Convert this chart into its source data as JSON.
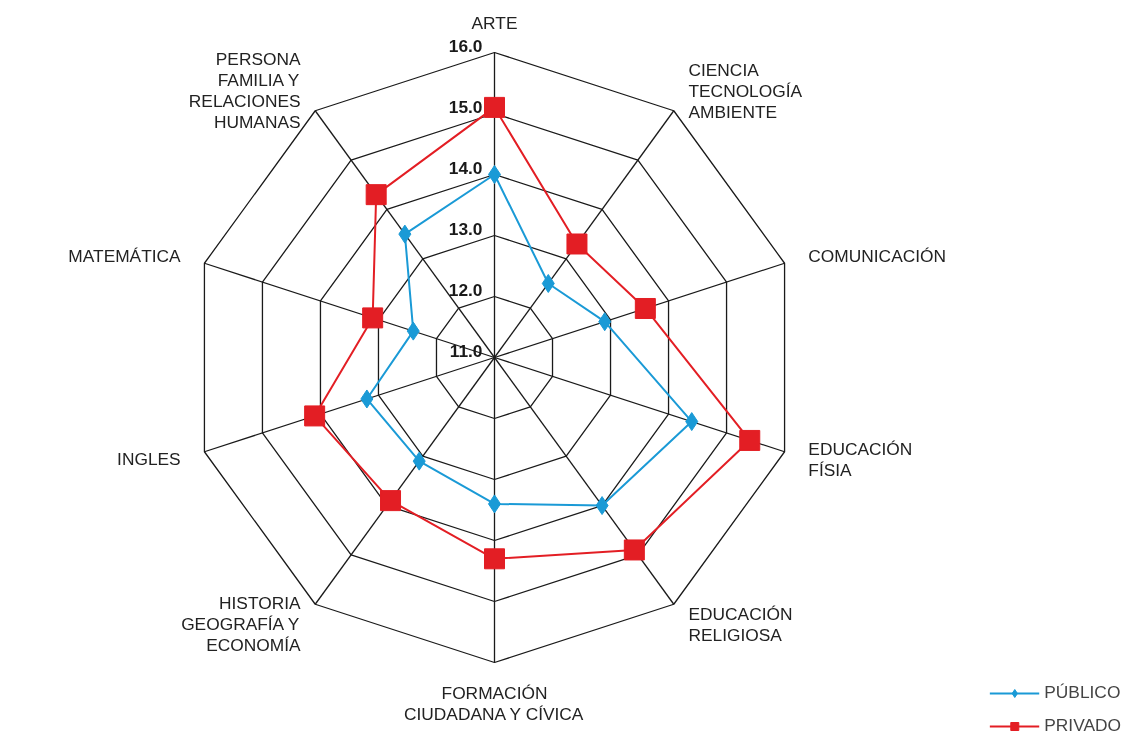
{
  "chart_data": {
    "type": "radar",
    "categories": [
      "ARTE",
      "CIENCIA\nTECNOLOGÍA\nAMBIENTE",
      "COMUNICACIÓN",
      "EDUCACIÓN\nFÍSIA",
      "EDUCACIÓN\nRELIGIOSA",
      "FORMACIÓN\nCIUDADANA Y CÍVICA",
      "HISTORIA\nGEOGRAFÍA Y\nECONOMÍA",
      "INGLES",
      "MATEMÁTICA",
      "PERSONA\nFAMILIA Y\nRELACIONES\nHUMANAS"
    ],
    "series": [
      {
        "name": "PÚBLICO",
        "color": "#1a9ad6",
        "marker": "diamond",
        "values": [
          14.0,
          12.5,
          12.9,
          14.4,
          14.0,
          13.4,
          13.1,
          13.2,
          12.4,
          13.5
        ]
      },
      {
        "name": "PRIVADO",
        "color": "#e31e24",
        "marker": "square",
        "values": [
          15.1,
          13.3,
          13.6,
          15.4,
          14.9,
          14.3,
          13.9,
          14.1,
          13.1,
          14.3
        ]
      }
    ],
    "ylim": [
      11,
      16
    ],
    "yticks": [
      {
        "value": 11,
        "label": "11.0"
      },
      {
        "value": 12,
        "label": "12.0"
      },
      {
        "value": 13,
        "label": "13.0"
      },
      {
        "value": 14,
        "label": "14.0"
      },
      {
        "value": 15,
        "label": "15.0"
      },
      {
        "value": 16,
        "label": "16.0"
      }
    ],
    "legend": "bottom right"
  }
}
